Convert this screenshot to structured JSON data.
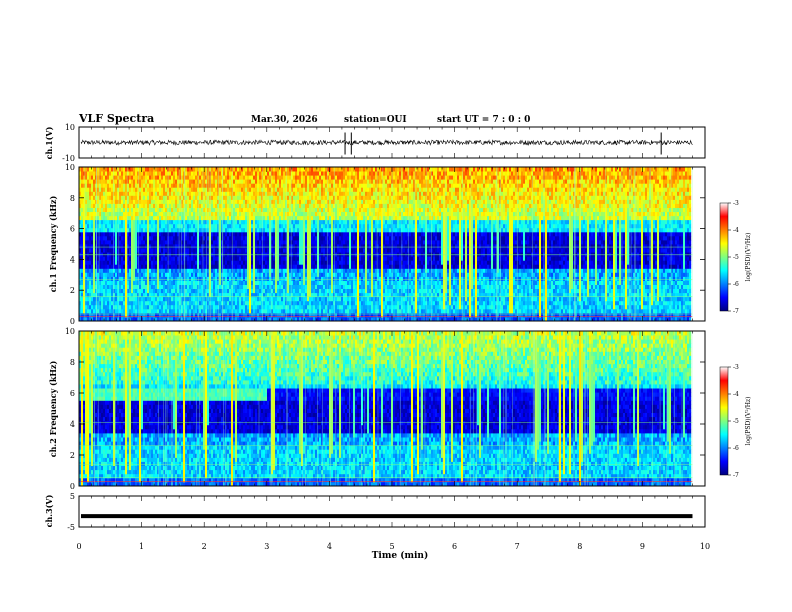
{
  "header": {
    "title": "VLF Spectra",
    "date": "Mar.30, 2026",
    "station": "station=OUI",
    "start": "start  UT =   7 : 0  : 0"
  },
  "colors": {
    "background_low": "#00007f",
    "mid": "#00ffff",
    "high": "#ffff00",
    "peak": "#ff0000"
  },
  "chart_data": [
    {
      "type": "line",
      "name": "ch1-waveform",
      "ylabel": "ch.1(V)",
      "ylim": [
        -10,
        10
      ],
      "yticks": [
        -10,
        10
      ],
      "xlim": [
        0,
        10
      ],
      "baseline": 0,
      "noise_amplitude": 1.5,
      "data_end_min": 9.8
    },
    {
      "type": "heatmap",
      "name": "ch1-spectrogram",
      "ylabel": "ch.1  Frequency (kHz)",
      "ylim": [
        0,
        10
      ],
      "yticks": [
        0,
        2,
        4,
        6,
        8,
        10
      ],
      "xlim": [
        0,
        10
      ],
      "data_end_min": 9.8,
      "colorbar": {
        "label": "log(PSD)(V²/Hz)",
        "range": [
          -7,
          -3
        ],
        "ticks": [
          "-3",
          "-4",
          "-5",
          "-6",
          "-7"
        ]
      }
    },
    {
      "type": "heatmap",
      "name": "ch2-spectrogram",
      "ylabel": "ch.2  Frequency (kHz)",
      "ylim": [
        0,
        10
      ],
      "yticks": [
        0,
        2,
        4,
        6,
        8,
        10
      ],
      "xlim": [
        0,
        10
      ],
      "data_end_min": 9.8,
      "colorbar": {
        "label": "log(PSD)(V²/Hz)",
        "range": [
          -7,
          -3
        ],
        "ticks": [
          "-3",
          "-4",
          "-5",
          "-6",
          "-7"
        ]
      }
    },
    {
      "type": "line",
      "name": "ch3-waveform",
      "ylabel": "ch.3(V)",
      "ylim": [
        -5,
        5
      ],
      "yticks": [
        -5,
        5
      ],
      "xlim": [
        0,
        10
      ],
      "baseline": -1.5,
      "data_end_min": 9.8
    }
  ],
  "xaxis": {
    "label": "Time (min)",
    "ticks": [
      "0",
      "1",
      "2",
      "3",
      "4",
      "5",
      "6",
      "7",
      "8",
      "9",
      "10"
    ]
  }
}
